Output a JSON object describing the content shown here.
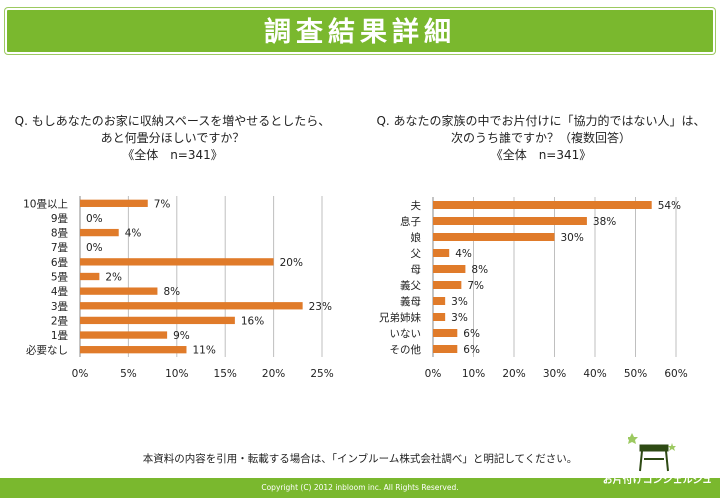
{
  "header": {
    "title": "調査結果詳細"
  },
  "colors": {
    "accent": "#7ab82e",
    "bar": "#e07b2a",
    "grid": "#bfbfbf"
  },
  "chart_data": [
    {
      "type": "bar",
      "orientation": "horizontal",
      "title": [
        "Q. もしあなたのお家に収納スペースを増やせるとしたら、",
        "あと何畳分ほしいですか？",
        "《全体　n=341》"
      ],
      "categories": [
        "10畳以上",
        "9畳",
        "8畳",
        "7畳",
        "6畳",
        "5畳",
        "4畳",
        "3畳",
        "2畳",
        "1畳",
        "必要なし"
      ],
      "values": [
        7,
        0,
        4,
        0,
        20,
        2,
        8,
        23,
        16,
        9,
        11
      ],
      "value_labels": [
        "7%",
        "0%",
        "4%",
        "0%",
        "20%",
        "2%",
        "8%",
        "23%",
        "16%",
        "9%",
        "11%"
      ],
      "xlim": [
        0,
        25
      ],
      "xticks": [
        "0%",
        "5%",
        "10%",
        "15%",
        "20%",
        "25%"
      ],
      "grid": true
    },
    {
      "type": "bar",
      "orientation": "horizontal",
      "title": [
        "Q. あなたの家族の中でお片付けに「協力的ではない人」は、",
        "次のうち誰ですか？（複数回答）",
        "《全体　n=341》"
      ],
      "categories": [
        "夫",
        "息子",
        "娘",
        "父",
        "母",
        "義父",
        "義母",
        "兄弟姉妹",
        "いない",
        "その他"
      ],
      "values": [
        54,
        38,
        30,
        4,
        8,
        7,
        3,
        3,
        6,
        6
      ],
      "value_labels": [
        "54%",
        "38%",
        "30%",
        "4%",
        "8%",
        "7%",
        "3%",
        "3%",
        "6%",
        "6%"
      ],
      "xlim": [
        0,
        60
      ],
      "xticks": [
        "0%",
        "10%",
        "20%",
        "30%",
        "40%",
        "50%",
        "60%"
      ],
      "grid": true
    }
  ],
  "note": "本資料の内容を引用・転載する場合は、「インブルーム株式会社調べ」と明記してください。",
  "footer": {
    "copyright": "Copyright (C) 2012 inbloom inc. All Rights Reserved.",
    "brand": "お片付けコンシェルジュ"
  }
}
